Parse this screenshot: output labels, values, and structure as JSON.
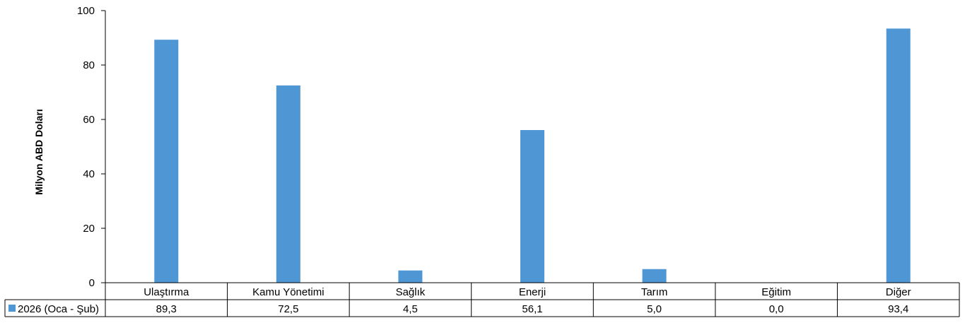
{
  "chart_data": {
    "type": "bar",
    "ylabel": "Milyon ABD Doları",
    "ylim": [
      0,
      100
    ],
    "yticks": [
      0,
      20,
      40,
      60,
      80,
      100
    ],
    "categories": [
      "Ulaştırma",
      "Kamu Yönetimi",
      "Sağlık",
      "Enerji",
      "Tarım",
      "Eğitim",
      "Diğer"
    ],
    "series": [
      {
        "name": "2026 (Oca - Şub)",
        "values": [
          89.3,
          72.5,
          4.5,
          56.1,
          5.0,
          0.0,
          93.4
        ],
        "value_labels": [
          "89,3",
          "72,5",
          "4,5",
          "56,1",
          "5,0",
          "0,0",
          "93,4"
        ],
        "color": "#4f97d4"
      }
    ],
    "grid": false,
    "legend": "data-table"
  }
}
